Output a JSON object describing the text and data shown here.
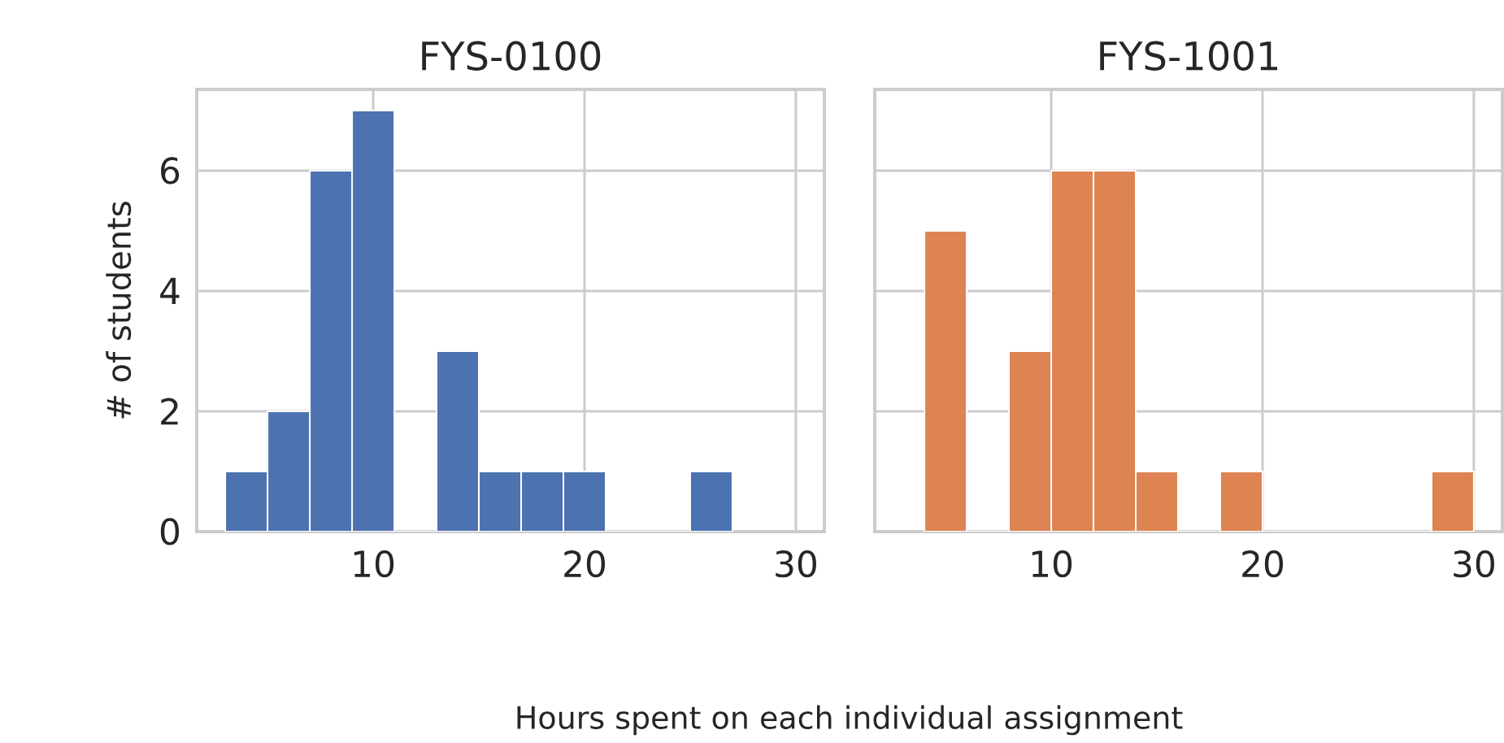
{
  "chart_data": [
    {
      "type": "histogram",
      "title": "FYS-0100",
      "ylabel": "# of students",
      "xlabel": "Hours spent on each individual assignment",
      "bins": [
        3,
        5,
        7,
        9,
        11,
        13,
        15,
        17,
        19,
        21,
        23,
        25,
        27
      ],
      "values": [
        1,
        2,
        6,
        7,
        0,
        3,
        1,
        1,
        1,
        0,
        0,
        1
      ],
      "color": "#4c72b0",
      "xlim": [
        1.65,
        31.35
      ],
      "xticks": [
        10,
        20,
        30
      ],
      "ylim": [
        0,
        7.35
      ],
      "yticks": [
        0,
        2,
        4,
        6
      ],
      "grid": true
    },
    {
      "type": "histogram",
      "title": "FYS-1001",
      "bins": [
        4,
        6,
        8,
        10,
        12,
        14,
        16,
        18,
        20,
        22,
        24,
        26,
        28,
        30
      ],
      "values": [
        5,
        0,
        3,
        6,
        6,
        1,
        0,
        1,
        0,
        0,
        0,
        0,
        1
      ],
      "color": "#dd8452",
      "xlim": [
        1.65,
        31.35
      ],
      "xticks": [
        10,
        20,
        30
      ],
      "ylim": [
        0,
        7.35
      ],
      "yticks": [
        0,
        2,
        4,
        6
      ],
      "grid": true,
      "tick_labels": "x"
    }
  ]
}
